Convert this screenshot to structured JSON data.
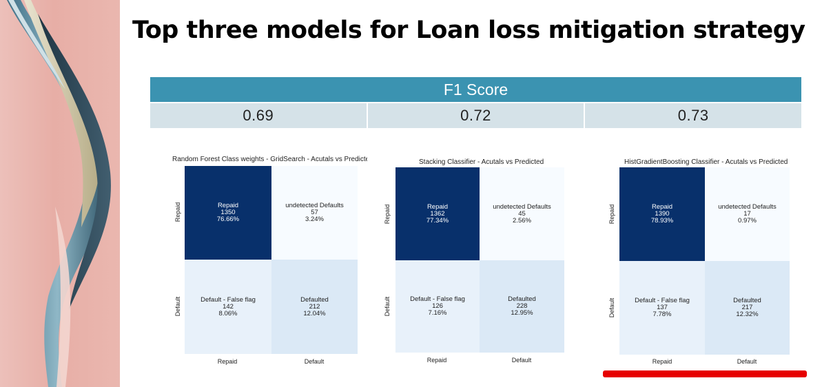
{
  "slide": {
    "title": "Top three models for Loan loss mitigation strategy"
  },
  "f1": {
    "header": "F1 Score",
    "scores": [
      "0.69",
      "0.72",
      "0.73"
    ]
  },
  "matrices": [
    {
      "title": "Random Forest Class weights - GridSearch - Acutals vs Predicte",
      "cells": {
        "tl": {
          "label": "Repaid",
          "count": "1350",
          "pct": "76.66%"
        },
        "tr": {
          "label": "undetected Defaults",
          "count": "57",
          "pct": "3.24%"
        },
        "bl": {
          "label": "Default - False flag",
          "count": "142",
          "pct": "8.06%"
        },
        "br": {
          "label": "Defaulted",
          "count": "212",
          "pct": "12.04%"
        }
      },
      "ylabels": [
        "Repaid",
        "Default"
      ],
      "xlabels": [
        "Repaid",
        "Default"
      ]
    },
    {
      "title": "Stacking Classifier - Acutals vs Predicted",
      "cells": {
        "tl": {
          "label": "Repaid",
          "count": "1362",
          "pct": "77.34%"
        },
        "tr": {
          "label": "undetected Defaults",
          "count": "45",
          "pct": "2.56%"
        },
        "bl": {
          "label": "Default - False flag",
          "count": "126",
          "pct": "7.16%"
        },
        "br": {
          "label": "Defaulted",
          "count": "228",
          "pct": "12.95%"
        }
      },
      "ylabels": [
        "Repaid",
        "Default"
      ],
      "xlabels": [
        "Repaid",
        "Default"
      ]
    },
    {
      "title": "HistGradientBoosting Classifier - Acutals vs Predicted",
      "cells": {
        "tl": {
          "label": "Repaid",
          "count": "1390",
          "pct": "78.93%"
        },
        "tr": {
          "label": "undetected Defaults",
          "count": "17",
          "pct": "0.97%"
        },
        "bl": {
          "label": "Default - False flag",
          "count": "137",
          "pct": "7.78%"
        },
        "br": {
          "label": "Defaulted",
          "count": "217",
          "pct": "12.32%"
        }
      },
      "ylabels": [
        "Repaid",
        "Default"
      ],
      "xlabels": [
        "Repaid",
        "Default"
      ]
    }
  ],
  "colors": {
    "header": "#3b93b1",
    "score_cell": "#d5e2e8",
    "cm_dark": "#08306b",
    "highlight": "#e60000"
  }
}
